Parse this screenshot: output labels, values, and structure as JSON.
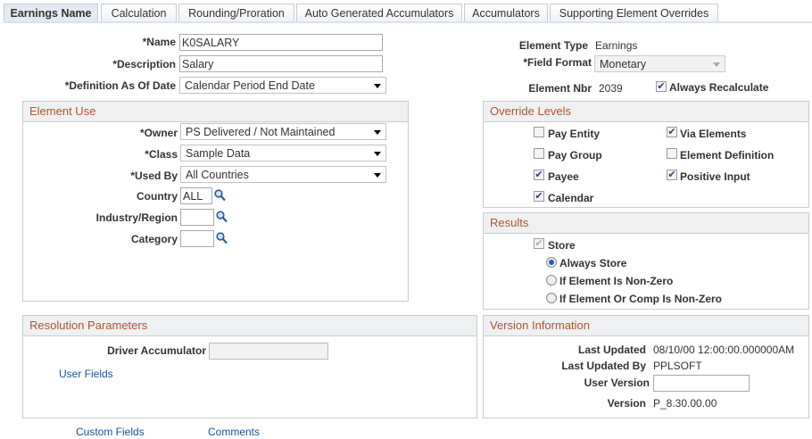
{
  "tabs": [
    "Earnings Name",
    "Calculation",
    "Rounding/Proration",
    "Auto Generated Accumulators",
    "Accumulators",
    "Supporting Element Overrides"
  ],
  "header": {
    "name_label": "*Name",
    "name_value": "K0SALARY",
    "desc_label": "*Description",
    "desc_value": "Salary",
    "defdate_label": "*Definition As Of Date",
    "defdate_value": "Calendar Period End Date",
    "eltype_label": "Element Type",
    "eltype_value": "Earnings",
    "format_label": "*Field Format",
    "format_value": "Monetary",
    "nbr_label": "Element Nbr",
    "nbr_value": "2039",
    "recalc_label": "Always Recalculate",
    "recalc_checked": true
  },
  "element_use": {
    "title": "Element Use",
    "owner_label": "*Owner",
    "owner_value": "PS Delivered / Not Maintained",
    "class_label": "*Class",
    "class_value": "Sample Data",
    "usedby_label": "*Used By",
    "usedby_value": "All Countries",
    "country_label": "Country",
    "country_value": "ALL",
    "industry_label": "Industry/Region",
    "industry_value": "",
    "category_label": "Category",
    "category_value": ""
  },
  "override": {
    "title": "Override Levels",
    "items": [
      {
        "label": "Pay Entity",
        "checked": false
      },
      {
        "label": "Via Elements",
        "checked": true
      },
      {
        "label": "Pay Group",
        "checked": false
      },
      {
        "label": "Element Definition",
        "checked": false
      },
      {
        "label": "Payee",
        "checked": true
      },
      {
        "label": "Positive Input",
        "checked": true
      },
      {
        "label": "Calendar",
        "checked": true
      }
    ]
  },
  "results": {
    "title": "Results",
    "store_label": "Store",
    "store_checked": true,
    "options": [
      "Always Store",
      "If Element Is Non-Zero",
      "If Element Or Comp Is Non-Zero"
    ],
    "selected": 0
  },
  "resolution": {
    "title": "Resolution Parameters",
    "driver_label": "Driver Accumulator",
    "driver_value": "",
    "user_fields": "User Fields"
  },
  "version": {
    "title": "Version Information",
    "updated_label": "Last Updated",
    "updated_value": "08/10/00 12:00:00.000000AM",
    "by_label": "Last Updated By",
    "by_value": "PPLSOFT",
    "userver_label": "User Version",
    "userver_value": "",
    "version_label": "Version",
    "version_value": "P_8.30.00.00"
  },
  "footer": {
    "custom_fields": "Custom Fields",
    "comments": "Comments"
  }
}
